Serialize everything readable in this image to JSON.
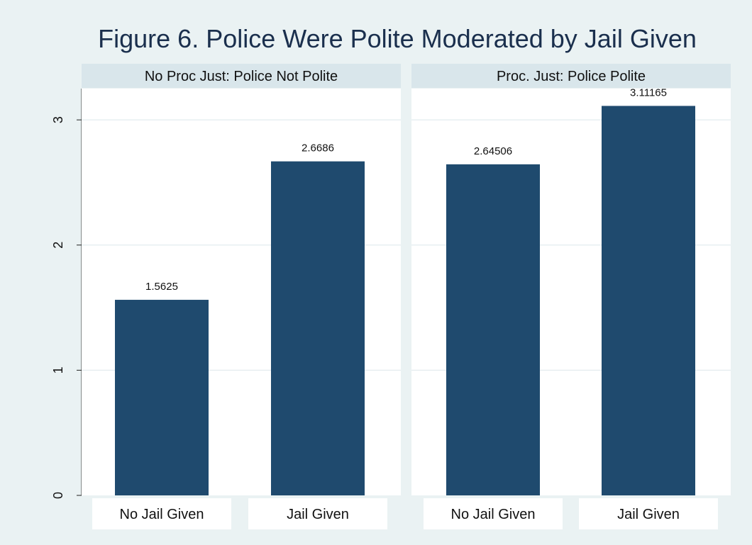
{
  "chart_data": {
    "type": "bar",
    "title": "Figure 6. Police Were Polite Moderated by Jail Given",
    "xlabel": "",
    "ylabel": "",
    "ylim": [
      0,
      3.25
    ],
    "yticks": [
      "0",
      "1",
      "2",
      "3"
    ],
    "grid": true,
    "bar_color": "#1f4a6e",
    "background_color": "#eaf2f3",
    "panel_color": "#ffffff",
    "strip_color": "#d9e6eb",
    "panels": [
      {
        "label": "No Proc Just: Police Not Polite",
        "categories": [
          "No Jail Given",
          "Jail Given"
        ],
        "values": [
          1.5625,
          2.6686
        ],
        "value_labels": [
          "1.5625",
          "2.6686"
        ]
      },
      {
        "label": "Proc. Just: Police Polite",
        "categories": [
          "No Jail Given",
          "Jail Given"
        ],
        "values": [
          2.64506,
          3.11165
        ],
        "value_labels": [
          "2.64506",
          "3.11165"
        ]
      }
    ]
  }
}
